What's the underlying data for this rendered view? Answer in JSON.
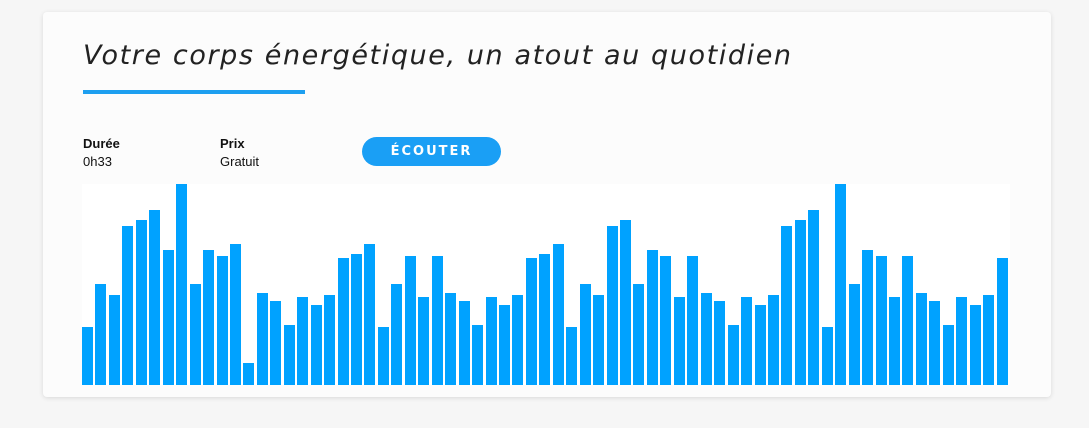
{
  "card": {
    "title": "Votre corps énergétique, un atout au quotidien",
    "duration": {
      "label": "Durée",
      "value": "0h33"
    },
    "price": {
      "label": "Prix",
      "value": "Gratuit"
    },
    "listen_button": "ÉCOUTER"
  },
  "colors": {
    "accent": "#1a9ff5",
    "waveform": "#00a2ff"
  },
  "waveform_levels": [
    0.29,
    0.5,
    0.45,
    0.79,
    0.82,
    0.87,
    0.67,
    1.0,
    0.5,
    0.67,
    0.64,
    0.7,
    0.11,
    0.46,
    0.42,
    0.3,
    0.44,
    0.4,
    0.45,
    0.63,
    0.65,
    0.7,
    0.29,
    0.5,
    0.64,
    0.44,
    0.64,
    0.46,
    0.42,
    0.3,
    0.44,
    0.4,
    0.45,
    0.63,
    0.65,
    0.7,
    0.29,
    0.5,
    0.45,
    0.79,
    0.82,
    0.5,
    0.67,
    0.64,
    0.44,
    0.64,
    0.46,
    0.42,
    0.3,
    0.44,
    0.4,
    0.45,
    0.79,
    0.82,
    0.87,
    0.29,
    1.0,
    0.5,
    0.67,
    0.64,
    0.44,
    0.64,
    0.46,
    0.42,
    0.3,
    0.44,
    0.4,
    0.45,
    0.63,
    0.65
  ]
}
